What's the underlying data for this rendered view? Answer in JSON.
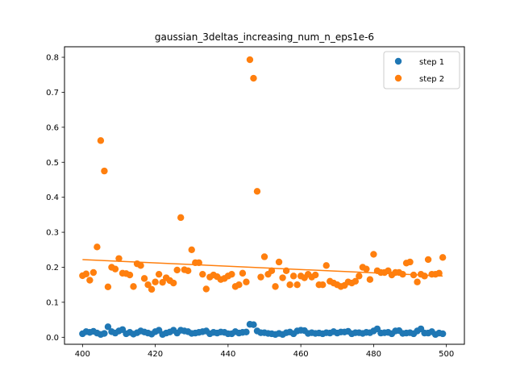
{
  "chart_data": {
    "type": "scatter",
    "title": "gaussian_3deltas_increasing_num_n_eps1e-6",
    "xlabel": "",
    "ylabel": "",
    "xlim": [
      395.05,
      504.95
    ],
    "ylim": [
      -0.02,
      0.83
    ],
    "xticks": [
      400,
      420,
      440,
      460,
      480,
      500
    ],
    "yticks": [
      0.0,
      0.1,
      0.2,
      0.3,
      0.4,
      0.5,
      0.6,
      0.7,
      0.8
    ],
    "ytick_labels": [
      "0.0",
      "0.1",
      "0.2",
      "0.3",
      "0.4",
      "0.5",
      "0.6",
      "0.7",
      "0.8"
    ],
    "grid": false,
    "legend_position": "top-right",
    "x": [
      400,
      401,
      402,
      403,
      404,
      405,
      406,
      407,
      408,
      409,
      410,
      411,
      412,
      413,
      414,
      415,
      416,
      417,
      418,
      419,
      420,
      421,
      422,
      423,
      424,
      425,
      426,
      427,
      428,
      429,
      430,
      431,
      432,
      433,
      434,
      435,
      436,
      437,
      438,
      439,
      440,
      441,
      442,
      443,
      444,
      445,
      446,
      447,
      448,
      449,
      450,
      451,
      452,
      453,
      454,
      455,
      456,
      457,
      458,
      459,
      460,
      461,
      462,
      463,
      464,
      465,
      466,
      467,
      468,
      469,
      470,
      471,
      472,
      473,
      474,
      475,
      476,
      477,
      478,
      479,
      480,
      481,
      482,
      483,
      484,
      485,
      486,
      487,
      488,
      489,
      490,
      491,
      492,
      493,
      494,
      495,
      496,
      497,
      498,
      499
    ],
    "series": [
      {
        "name": "step 1",
        "color": "#1f77b4",
        "values": [
          0.01,
          0.016,
          0.014,
          0.017,
          0.012,
          0.008,
          0.011,
          0.03,
          0.016,
          0.012,
          0.018,
          0.022,
          0.01,
          0.014,
          0.009,
          0.013,
          0.018,
          0.015,
          0.012,
          0.009,
          0.016,
          0.02,
          0.008,
          0.012,
          0.015,
          0.02,
          0.012,
          0.02,
          0.018,
          0.016,
          0.011,
          0.012,
          0.014,
          0.016,
          0.018,
          0.01,
          0.014,
          0.012,
          0.015,
          0.014,
          0.01,
          0.01,
          0.016,
          0.012,
          0.014,
          0.015,
          0.037,
          0.036,
          0.018,
          0.013,
          0.013,
          0.011,
          0.01,
          0.008,
          0.011,
          0.008,
          0.013,
          0.015,
          0.01,
          0.018,
          0.02,
          0.019,
          0.011,
          0.013,
          0.011,
          0.012,
          0.01,
          0.013,
          0.012,
          0.016,
          0.012,
          0.015,
          0.015,
          0.017,
          0.01,
          0.013,
          0.013,
          0.011,
          0.014,
          0.013,
          0.018,
          0.024,
          0.012,
          0.013,
          0.014,
          0.01,
          0.018,
          0.019,
          0.011,
          0.012,
          0.013,
          0.01,
          0.018,
          0.024,
          0.012,
          0.012,
          0.016,
          0.008,
          0.012,
          0.01
        ]
      },
      {
        "name": "step 2",
        "color": "#ff7f0e",
        "values": [
          0.176,
          0.181,
          0.163,
          0.185,
          0.258,
          0.562,
          0.475,
          0.144,
          0.2,
          0.195,
          0.225,
          0.183,
          0.182,
          0.178,
          0.145,
          0.21,
          0.205,
          0.168,
          0.15,
          0.137,
          0.158,
          0.18,
          0.157,
          0.17,
          0.162,
          0.155,
          0.192,
          0.342,
          0.193,
          0.19,
          0.25,
          0.213,
          0.213,
          0.18,
          0.138,
          0.172,
          0.178,
          0.173,
          0.165,
          0.168,
          0.175,
          0.18,
          0.145,
          0.15,
          0.183,
          0.158,
          0.793,
          0.74,
          0.417,
          0.172,
          0.23,
          0.18,
          0.19,
          0.145,
          0.215,
          0.17,
          0.19,
          0.15,
          0.175,
          0.15,
          0.175,
          0.17,
          0.18,
          0.172,
          0.178,
          0.15,
          0.15,
          0.205,
          0.16,
          0.155,
          0.15,
          0.145,
          0.148,
          0.158,
          0.155,
          0.16,
          0.175,
          0.2,
          0.195,
          0.165,
          0.237,
          0.19,
          0.185,
          0.185,
          0.19,
          0.178,
          0.185,
          0.185,
          0.18,
          0.212,
          0.215,
          0.178,
          0.158,
          0.18,
          0.175,
          0.222,
          0.18,
          0.18,
          0.183,
          0.228
        ]
      }
    ],
    "trendline": {
      "series": "step 2",
      "color": "#ff7f0e",
      "x": [
        400,
        499
      ],
      "y": [
        0.222,
        0.175
      ]
    }
  }
}
